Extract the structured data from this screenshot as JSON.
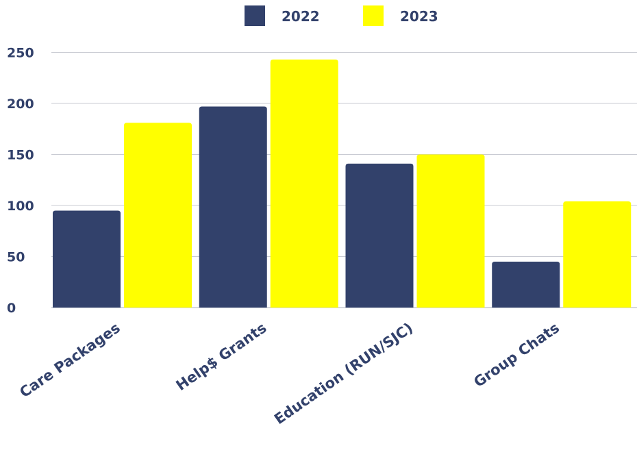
{
  "chart_data": {
    "type": "bar",
    "title": "",
    "xlabel": "",
    "ylabel": "",
    "categories": [
      "Care Packages",
      "Help$ Grants",
      "Education (RUN/SJC)",
      "Group Chats"
    ],
    "series": [
      {
        "name": "2022",
        "color": "#32416b",
        "values": [
          95,
          197,
          141,
          45
        ]
      },
      {
        "name": "2023",
        "color": "#ffff00",
        "values": [
          181,
          243,
          150,
          104
        ]
      }
    ],
    "ylim": [
      0,
      250
    ],
    "yticks": [
      0,
      50,
      100,
      150,
      200,
      250
    ],
    "grid": true,
    "legend_position": "top-center",
    "text_color": "#32416b",
    "grid_color": "#c9cbd3"
  }
}
